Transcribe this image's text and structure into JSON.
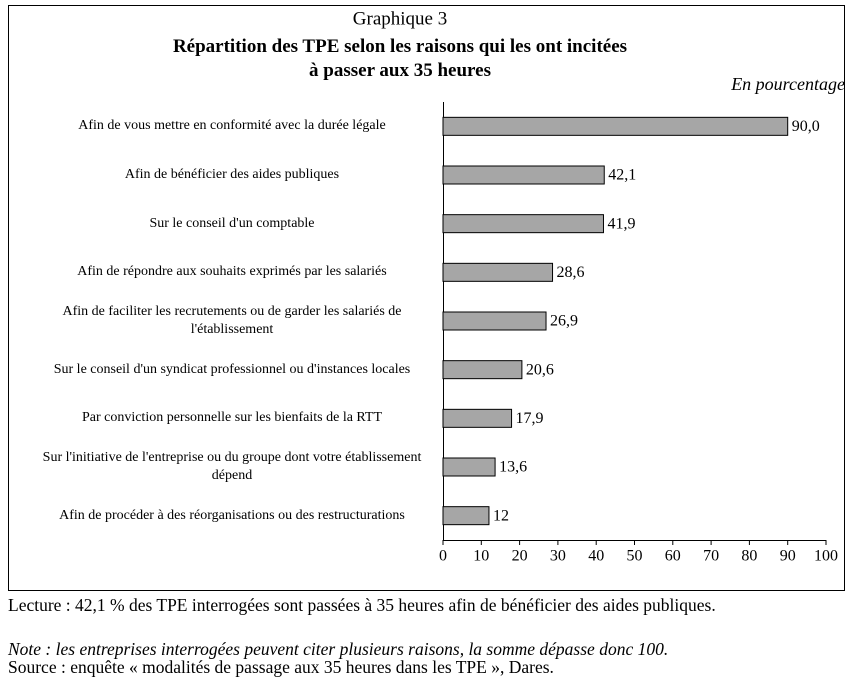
{
  "chart_data": {
    "type": "barh",
    "label": "Graphique 3",
    "title": "Répartition des TPE selon les raisons qui les ont incitées à passer aux 35 heures",
    "unit_label": "En pourcentage",
    "categories": [
      "Afin de vous mettre en conformité avec la durée légale",
      "Afin de bénéficier des aides publiques",
      "Sur le conseil d'un comptable",
      "Afin de répondre aux souhaits exprimés par les salariés",
      "Afin de faciliter les recrutements ou de garder les salariés de l'établissement",
      "Sur le conseil d'un syndicat professionnel ou d'instances locales",
      "Par conviction personnelle sur les bienfaits de la RTT",
      "Sur l'initiative de l'entreprise ou du groupe dont votre établissement dépend",
      "Afin de procéder à des réorganisations ou des restructurations"
    ],
    "values": [
      90.0,
      42.1,
      41.9,
      28.6,
      26.9,
      20.6,
      17.9,
      13.6,
      12
    ],
    "value_labels": [
      "90,0",
      "42,1",
      "41,9",
      "28,6",
      "26,9",
      "20,6",
      "17,9",
      "13,6",
      "12"
    ],
    "color": "#a6a6a6",
    "xlim": [
      0,
      100
    ],
    "xticks": [
      0,
      10,
      20,
      30,
      40,
      50,
      60,
      70,
      80,
      90,
      100
    ]
  },
  "notes": {
    "lecture": "Lecture : 42,1 % des TPE interrogées sont passées à 35 heures afin de bénéficier des aides publiques.",
    "note": "Note : les entreprises interrogées peuvent citer plusieurs raisons, la somme dépasse donc 100.",
    "source": "Source : enquête « modalités de passage aux 35 heures dans les TPE », Dares."
  }
}
